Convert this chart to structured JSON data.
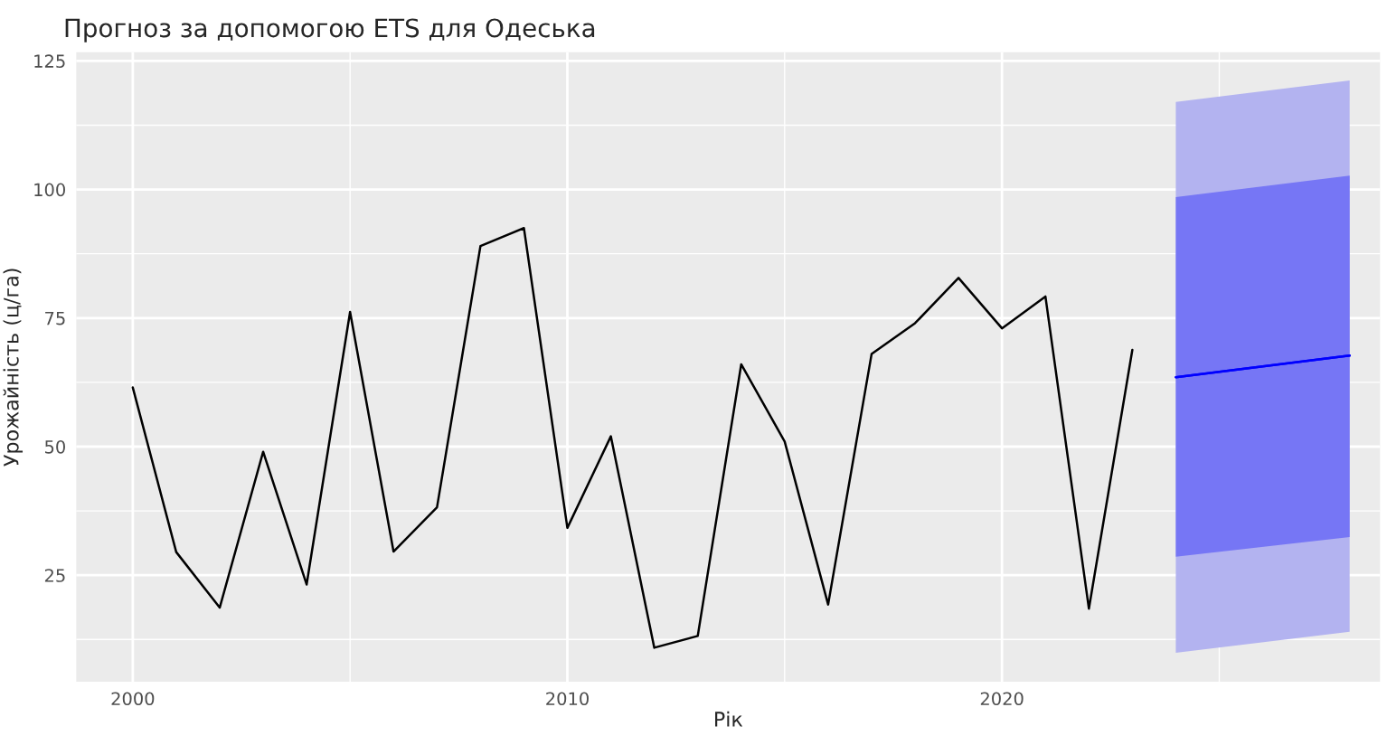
{
  "chart_data": {
    "type": "line",
    "title": "Прогноз за допомогою ETS для Одеська",
    "xlabel": "Рік",
    "ylabel": "Урожайність (ц/га)",
    "series": [
      {
        "color": "#000000",
        "x": [
          2000,
          2001,
          2002,
          2003,
          2004,
          2005,
          2006,
          2007,
          2008,
          2009,
          2010,
          2011,
          2012,
          2013,
          2014,
          2015,
          2016,
          2017,
          2018,
          2019,
          2020,
          2021,
          2022,
          2023
        ],
        "values": [
          61.5,
          29.5,
          18.7,
          49,
          23.2,
          76.2,
          29.6,
          38.2,
          89,
          92.5,
          34.2,
          52,
          10.9,
          13.2,
          66,
          51,
          19.3,
          68,
          74,
          82.8,
          73,
          79.2,
          18.5,
          68.8
        ]
      },
      {
        "color": "#0000ff",
        "x": [
          2024,
          2028
        ],
        "values": [
          63.5,
          67.7
        ],
        "lower": [
          9.9,
          14
        ],
        "upper": [
          117,
          121.2
        ]
      },
      {
        "color": "#0000ff",
        "x": [
          2024,
          2028
        ],
        "values": [
          63.5,
          67.7
        ],
        "lower": [
          28.6,
          32.4
        ],
        "upper": [
          98.5,
          102.7
        ]
      }
    ],
    "xlim": [
      1998.7,
      2028.7
    ],
    "ylim": [
      4.3,
      126.7
    ],
    "xticks": [
      2000,
      2010,
      2020
    ],
    "yticks": [
      25,
      50,
      75,
      100,
      125
    ],
    "grid": true,
    "marker": "none",
    "line_style": "solid"
  }
}
